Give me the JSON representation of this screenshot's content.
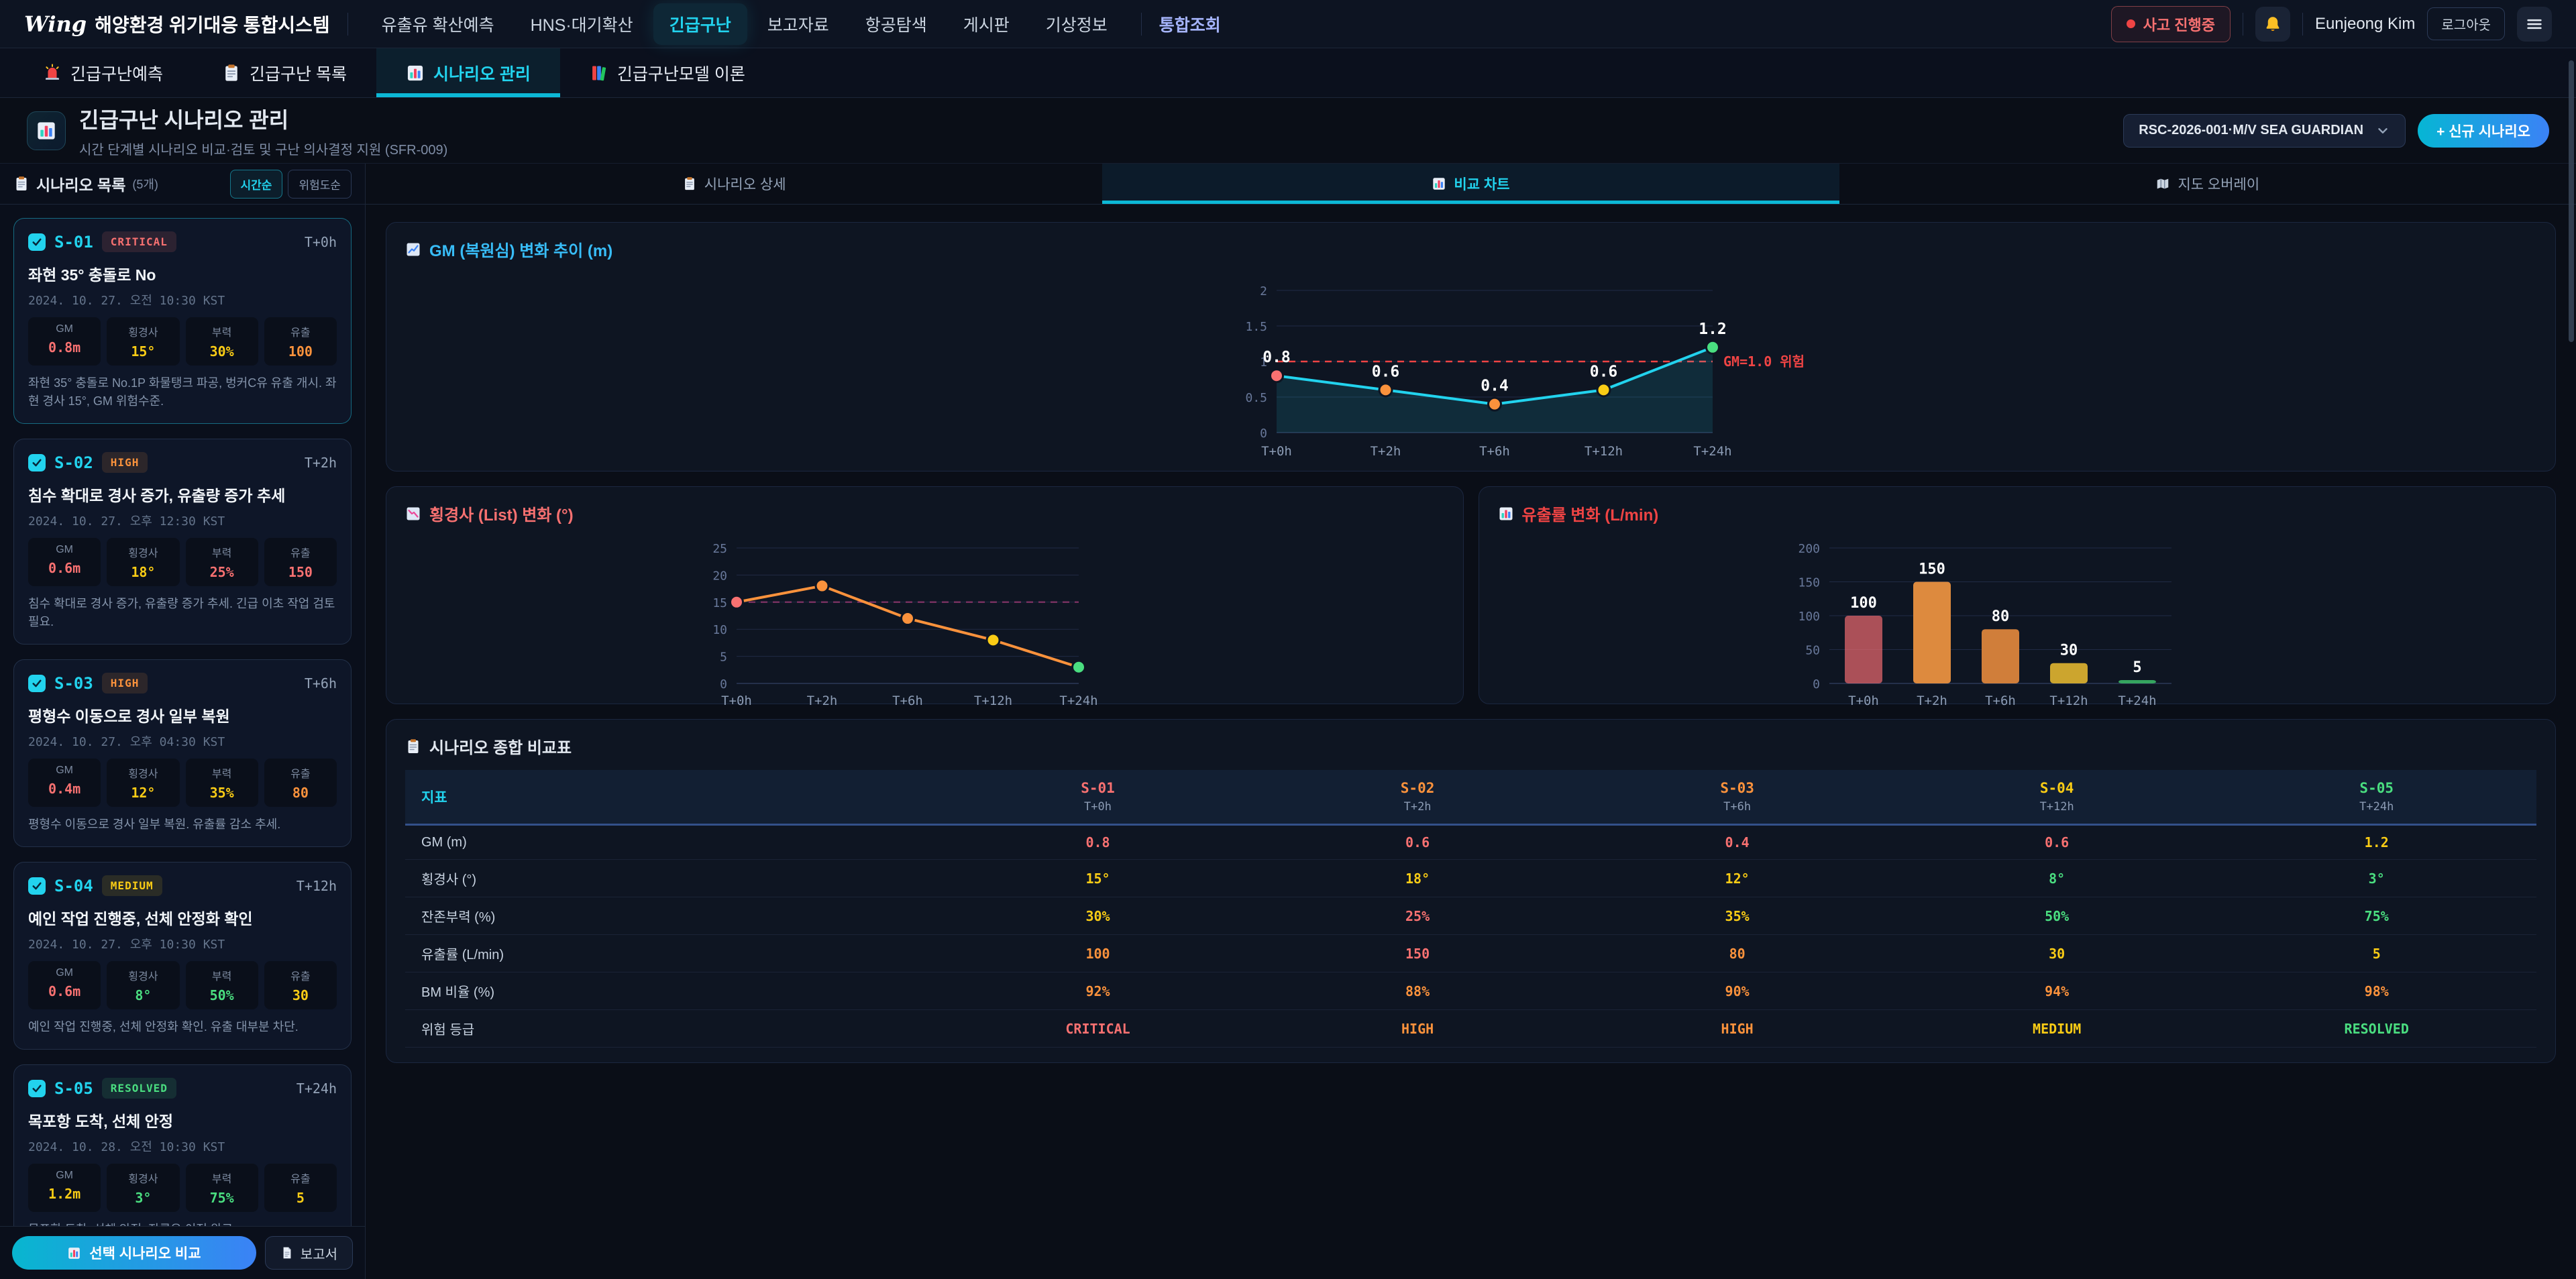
{
  "topnav": {
    "logo_mark": "Wing",
    "logo_text": "해양환경 위기대응 통합시스템",
    "items": [
      {
        "label": "유출유 확산예측",
        "active": false
      },
      {
        "label": "HNS·대기확산",
        "active": false
      },
      {
        "label": "긴급구난",
        "active": true
      },
      {
        "label": "보고자료",
        "active": false
      },
      {
        "label": "항공탐색",
        "active": false
      },
      {
        "label": "게시판",
        "active": false
      },
      {
        "label": "기상정보",
        "active": false
      }
    ],
    "quick_item": "통합조회",
    "incident_badge": "사고 진행중",
    "bell_icon": "bell-icon",
    "user_name": "Eunjeong Kim",
    "logout_label": "로그아웃",
    "menu_icon": "menu-icon"
  },
  "module_tabs": [
    {
      "icon": "siren-icon",
      "label": "긴급구난예측",
      "active": false
    },
    {
      "icon": "clipboard-icon",
      "label": "긴급구난 목록",
      "active": false
    },
    {
      "icon": "bar-chart-icon",
      "label": "시나리오 관리",
      "active": true
    },
    {
      "icon": "books-icon",
      "label": "긴급구난모델 이론",
      "active": false
    }
  ],
  "page_header": {
    "icon": "bar-chart-icon",
    "title": "긴급구난 시나리오 관리",
    "subtitle": "시간 단계별 시나리오 비교·검토 및 구난 의사결정 지원 (SFR-009)",
    "case_selector": "RSC-2026-001·M/V SEA GUARDIAN",
    "chevron_icon": "chevron-down-icon",
    "new_scenario_label": "+ 신규 시나리오"
  },
  "sidebar": {
    "icon": "clipboard-icon",
    "title": "시나리오 목록",
    "count": "(5개)",
    "sort_options": [
      {
        "label": "시간순",
        "active": true
      },
      {
        "label": "위험도순",
        "active": false
      }
    ],
    "metric_labels": [
      "GM",
      "횡경사",
      "부력",
      "유출"
    ],
    "scenarios": [
      {
        "id": "S-01",
        "checked": true,
        "selected": true,
        "level": "CRITICAL",
        "time_offset": "T+0h",
        "title": "좌현 35° 충돌로 No",
        "datetime": "2024. 10. 27. 오전 10:30 KST",
        "metrics": [
          {
            "value": "0.8m",
            "color": "#f87171"
          },
          {
            "value": "15°",
            "color": "#facc15"
          },
          {
            "value": "30%",
            "color": "#facc15"
          },
          {
            "value": "100",
            "color": "#fb923c"
          }
        ],
        "description": "좌현 35° 충돌로 No.1P 화물탱크 파공, 벙커C유 유출 개시. 좌현 경사 15°, GM 위험수준."
      },
      {
        "id": "S-02",
        "checked": true,
        "selected": false,
        "level": "HIGH",
        "time_offset": "T+2h",
        "title": "침수 확대로 경사 증가, 유출량 증가 추세",
        "datetime": "2024. 10. 27. 오후 12:30 KST",
        "metrics": [
          {
            "value": "0.6m",
            "color": "#f87171"
          },
          {
            "value": "18°",
            "color": "#facc15"
          },
          {
            "value": "25%",
            "color": "#f87171"
          },
          {
            "value": "150",
            "color": "#f87171"
          }
        ],
        "description": "침수 확대로 경사 증가, 유출량 증가 추세. 긴급 이초 작업 검토 필요."
      },
      {
        "id": "S-03",
        "checked": true,
        "selected": false,
        "level": "HIGH",
        "time_offset": "T+6h",
        "title": "평형수 이동으로 경사 일부 복원",
        "datetime": "2024. 10. 27. 오후 04:30 KST",
        "metrics": [
          {
            "value": "0.4m",
            "color": "#f87171"
          },
          {
            "value": "12°",
            "color": "#facc15"
          },
          {
            "value": "35%",
            "color": "#facc15"
          },
          {
            "value": "80",
            "color": "#fb923c"
          }
        ],
        "description": "평형수 이동으로 경사 일부 복원. 유출률 감소 추세."
      },
      {
        "id": "S-04",
        "checked": true,
        "selected": false,
        "level": "MEDIUM",
        "time_offset": "T+12h",
        "title": "예인 작업 진행중, 선체 안정화 확인",
        "datetime": "2024. 10. 27. 오후 10:30 KST",
        "metrics": [
          {
            "value": "0.6m",
            "color": "#f87171"
          },
          {
            "value": "8°",
            "color": "#4ade80"
          },
          {
            "value": "50%",
            "color": "#4ade80"
          },
          {
            "value": "30",
            "color": "#facc15"
          }
        ],
        "description": "예인 작업 진행중, 선체 안정화 확인. 유출 대부분 차단."
      },
      {
        "id": "S-05",
        "checked": true,
        "selected": false,
        "level": "RESOLVED",
        "time_offset": "T+24h",
        "title": "목포항 도착, 선체 안정",
        "datetime": "2024. 10. 28. 오전 10:30 KST",
        "metrics": [
          {
            "value": "1.2m",
            "color": "#facc15"
          },
          {
            "value": "3°",
            "color": "#4ade80"
          },
          {
            "value": "75%",
            "color": "#4ade80"
          },
          {
            "value": "5",
            "color": "#facc15"
          }
        ],
        "description": "목포항 도착, 선체 안정. 잔류유 이적 완료."
      }
    ],
    "compare_button": {
      "icon": "bar-chart-icon",
      "label": "선택 시나리오 비교"
    },
    "report_button": {
      "icon": "doc-icon",
      "label": "보고서"
    }
  },
  "content_tabs": [
    {
      "icon": "clipboard-icon",
      "label": "시나리오 상세",
      "active": false
    },
    {
      "icon": "bar-chart-icon",
      "label": "비교 차트",
      "active": true
    },
    {
      "icon": "map-icon",
      "label": "지도 오버레이",
      "active": false
    }
  ],
  "chart_data": [
    {
      "type": "line",
      "panel": "gm",
      "icon": "chart-up-icon",
      "title": "GM (복원심) 변화 추이 (m)",
      "title_color": "#38bdf8",
      "x": [
        "T+0h",
        "T+2h",
        "T+6h",
        "T+12h",
        "T+24h"
      ],
      "values": [
        0.8,
        0.6,
        0.4,
        0.6,
        1.2
      ],
      "point_labels": [
        "0.8",
        "0.6",
        "0.4",
        "0.6",
        "1.2"
      ],
      "point_colors": [
        "#f87171",
        "#fb923c",
        "#fb923c",
        "#facc15",
        "#4ade80"
      ],
      "line_color": "#22d3ee",
      "area_fill": "rgba(34,211,238,0.12)",
      "ylim": [
        0,
        2
      ],
      "yticks": [
        0,
        0.5,
        1,
        1.5,
        2
      ],
      "ref_line": {
        "y": 1,
        "label": "GM=1.0 위험",
        "color": "#ef4444"
      },
      "grid": true,
      "legend": "none"
    },
    {
      "type": "line",
      "panel": "list",
      "icon": "chart-down-icon",
      "title": "횡경사 (List) 변화 (°)",
      "title_color": "#f87171",
      "x": [
        "T+0h",
        "T+2h",
        "T+6h",
        "T+12h",
        "T+24h"
      ],
      "values": [
        15,
        18,
        12,
        8,
        3
      ],
      "point_labels": [],
      "point_colors": [
        "#f87171",
        "#fb923c",
        "#fb923c",
        "#facc15",
        "#4ade80"
      ],
      "line_color": "#fb923c",
      "area_fill": "",
      "ylim": [
        0,
        25
      ],
      "yticks": [
        0,
        5,
        10,
        15,
        20,
        25
      ],
      "ref_line": {
        "y": 15,
        "label": "",
        "color": "rgba(236,72,153,0.45)"
      },
      "grid": true,
      "legend": "none"
    },
    {
      "type": "bar",
      "panel": "spill",
      "icon": "bar-chart-icon",
      "title": "유출률 변화 (L/min)",
      "title_color": "#ef4444",
      "x": [
        "T+0h",
        "T+2h",
        "T+6h",
        "T+12h",
        "T+24h"
      ],
      "values": [
        100,
        150,
        80,
        30,
        5
      ],
      "value_labels": [
        "100",
        "150",
        "80",
        "30",
        "5"
      ],
      "bar_colors": [
        "rgba(233,104,110,0.72)",
        "#dd8a3e",
        "#d07e3a",
        "#cca52e",
        "#35a55f"
      ],
      "ylim": [
        0,
        200
      ],
      "yticks": [
        0,
        50,
        100,
        150,
        200
      ],
      "grid": true,
      "legend": "none"
    },
    {
      "type": "table",
      "panel": "table",
      "icon": "clipboard-icon",
      "title": "시나리오 종합 비교표",
      "header": {
        "metric_label": "지표",
        "columns": [
          {
            "id": "S-01",
            "time": "T+0h",
            "color": "#f87171"
          },
          {
            "id": "S-02",
            "time": "T+2h",
            "color": "#fb923c"
          },
          {
            "id": "S-03",
            "time": "T+6h",
            "color": "#fb923c"
          },
          {
            "id": "S-04",
            "time": "T+12h",
            "color": "#facc15"
          },
          {
            "id": "S-05",
            "time": "T+24h",
            "color": "#4ade80"
          }
        ]
      },
      "rows": [
        {
          "label": "GM (m)",
          "cells": [
            {
              "value": "0.8",
              "color": "#f87171"
            },
            {
              "value": "0.6",
              "color": "#f87171"
            },
            {
              "value": "0.4",
              "color": "#f87171"
            },
            {
              "value": "0.6",
              "color": "#f87171"
            },
            {
              "value": "1.2",
              "color": "#facc15"
            }
          ]
        },
        {
          "label": "횡경사 (°)",
          "cells": [
            {
              "value": "15°",
              "color": "#facc15"
            },
            {
              "value": "18°",
              "color": "#facc15"
            },
            {
              "value": "12°",
              "color": "#facc15"
            },
            {
              "value": "8°",
              "color": "#4ade80"
            },
            {
              "value": "3°",
              "color": "#4ade80"
            }
          ]
        },
        {
          "label": "잔존부력 (%)",
          "cells": [
            {
              "value": "30%",
              "color": "#facc15"
            },
            {
              "value": "25%",
              "color": "#f87171"
            },
            {
              "value": "35%",
              "color": "#facc15"
            },
            {
              "value": "50%",
              "color": "#4ade80"
            },
            {
              "value": "75%",
              "color": "#4ade80"
            }
          ]
        },
        {
          "label": "유출률 (L/min)",
          "cells": [
            {
              "value": "100",
              "color": "#fb923c"
            },
            {
              "value": "150",
              "color": "#f87171"
            },
            {
              "value": "80",
              "color": "#fb923c"
            },
            {
              "value": "30",
              "color": "#facc15"
            },
            {
              "value": "5",
              "color": "#facc15"
            }
          ]
        },
        {
          "label": "BM 비율 (%)",
          "cells": [
            {
              "value": "92%",
              "color": "#fb923c"
            },
            {
              "value": "88%",
              "color": "#fb923c"
            },
            {
              "value": "90%",
              "color": "#fb923c"
            },
            {
              "value": "94%",
              "color": "#fb923c"
            },
            {
              "value": "98%",
              "color": "#fb923c"
            }
          ]
        },
        {
          "label": "위험 등급",
          "cells": [
            {
              "value": "CRITICAL",
              "color": "#f87171"
            },
            {
              "value": "HIGH",
              "color": "#fb923c"
            },
            {
              "value": "HIGH",
              "color": "#fb923c"
            },
            {
              "value": "MEDIUM",
              "color": "#facc15"
            },
            {
              "value": "RESOLVED",
              "color": "#4ade80"
            }
          ]
        }
      ]
    }
  ],
  "colors": {
    "accent": "#22d3ee",
    "critical": "#f87171",
    "high": "#fb923c",
    "medium": "#facc15",
    "resolved": "#4ade80"
  }
}
